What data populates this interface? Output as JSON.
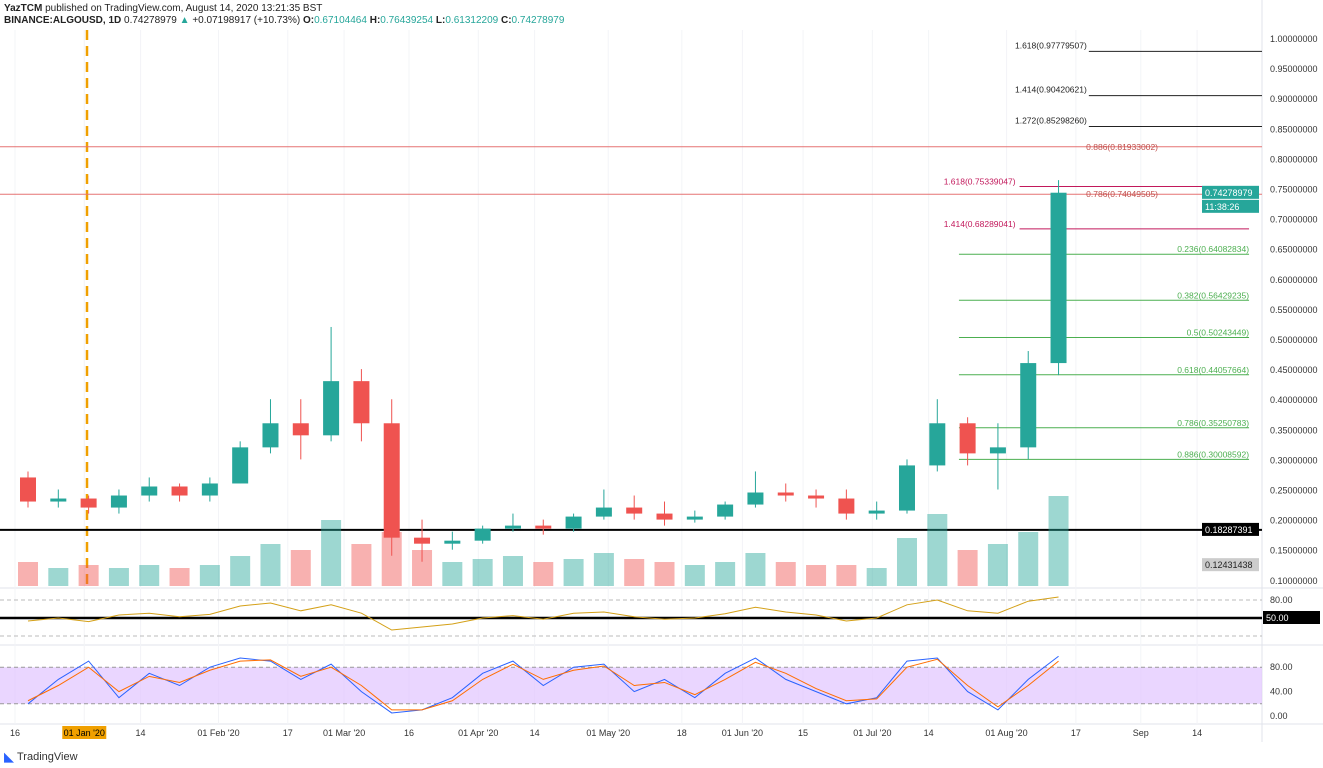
{
  "header": {
    "publisher": "YazTCM",
    "published_text": "published on TradingView.com, August 14, 2020 13:21:35 BST",
    "symbol": "BINANCE:ALGOUSD, 1D",
    "last": "0.74278979",
    "change": "+0.07198917 (+10.73%)",
    "o_label": "O:",
    "o": "0.67104464",
    "h_label": "H:",
    "h": "0.76439254",
    "l_label": "L:",
    "l": "0.61312209",
    "c_label": "C:",
    "c": "0.74278979"
  },
  "footer": {
    "brand": "TradingView"
  },
  "colors": {
    "up": "#26a69a",
    "down": "#ef5350",
    "fib_green": "#4caf50",
    "fib_red": "#b2275d",
    "rsi": "#d4a017",
    "stoch_k": "#2962ff",
    "stoch_d": "#ff6d00",
    "stoch_band": "#e1c4ff"
  },
  "chart_data": {
    "type": "candlestick",
    "price_axis": {
      "ylim": [
        0.1,
        1.0
      ],
      "ticks": [
        "1.00000000",
        "0.95000000",
        "0.90000000",
        "0.85000000",
        "0.80000000",
        "0.75000000",
        "0.70000000",
        "0.65000000",
        "0.60000000",
        "0.55000000",
        "0.50000000",
        "0.45000000",
        "0.40000000",
        "0.35000000",
        "0.30000000",
        "0.25000000",
        "0.20000000",
        "0.15000000",
        "0.10000000"
      ]
    },
    "price_labels": {
      "last": "0.74278979",
      "countdown": "11:38:26",
      "support": "0.18287391",
      "volume_last": "0.12431438"
    },
    "x_ticks": [
      {
        "d": "2019-12-16",
        "t": "16"
      },
      {
        "d": "2020-01-01",
        "t": "01 Jan '20"
      },
      {
        "d": "2020-01-14",
        "t": "14"
      },
      {
        "d": "2020-02-01",
        "t": "01 Feb '20"
      },
      {
        "d": "2020-02-17",
        "t": "17"
      },
      {
        "d": "2020-03-01",
        "t": "01 Mar '20"
      },
      {
        "d": "2020-03-16",
        "t": "16"
      },
      {
        "d": "2020-04-01",
        "t": "01 Apr '20"
      },
      {
        "d": "2020-04-14",
        "t": "14"
      },
      {
        "d": "2020-05-01",
        "t": "01 May '20"
      },
      {
        "d": "2020-05-18",
        "t": "18"
      },
      {
        "d": "2020-06-01",
        "t": "01 Jun '20"
      },
      {
        "d": "2020-06-15",
        "t": "15"
      },
      {
        "d": "2020-07-01",
        "t": "01 Jul '20"
      },
      {
        "d": "2020-07-14",
        "t": "14"
      },
      {
        "d": "2020-08-01",
        "t": "01 Aug '20"
      },
      {
        "d": "2020-08-17",
        "t": "17"
      },
      {
        "d": "2020-09-01",
        "t": "Sep"
      },
      {
        "d": "2020-09-14",
        "t": "14"
      }
    ],
    "candles": [
      [
        "2019-12-16",
        0.27,
        0.28,
        0.22,
        0.23,
        40
      ],
      [
        "2019-12-23",
        0.23,
        0.25,
        0.22,
        0.235,
        30
      ],
      [
        "2019-12-30",
        0.235,
        0.24,
        0.21,
        0.22,
        35
      ],
      [
        "2020-01-06",
        0.22,
        0.25,
        0.21,
        0.24,
        30
      ],
      [
        "2020-01-13",
        0.24,
        0.27,
        0.23,
        0.255,
        35
      ],
      [
        "2020-01-20",
        0.255,
        0.26,
        0.23,
        0.24,
        30
      ],
      [
        "2020-01-27",
        0.24,
        0.27,
        0.23,
        0.26,
        35
      ],
      [
        "2020-02-03",
        0.26,
        0.33,
        0.26,
        0.32,
        50
      ],
      [
        "2020-02-10",
        0.32,
        0.4,
        0.31,
        0.36,
        70
      ],
      [
        "2020-02-17",
        0.36,
        0.4,
        0.3,
        0.34,
        60
      ],
      [
        "2020-02-24",
        0.34,
        0.52,
        0.33,
        0.43,
        110
      ],
      [
        "2020-03-02",
        0.43,
        0.45,
        0.33,
        0.36,
        70
      ],
      [
        "2020-03-09",
        0.36,
        0.4,
        0.14,
        0.17,
        90
      ],
      [
        "2020-03-16",
        0.17,
        0.2,
        0.13,
        0.16,
        60
      ],
      [
        "2020-03-23",
        0.16,
        0.18,
        0.15,
        0.165,
        40
      ],
      [
        "2020-03-30",
        0.165,
        0.19,
        0.16,
        0.185,
        45
      ],
      [
        "2020-04-06",
        0.185,
        0.21,
        0.18,
        0.19,
        50
      ],
      [
        "2020-04-13",
        0.19,
        0.2,
        0.175,
        0.185,
        40
      ],
      [
        "2020-04-20",
        0.185,
        0.21,
        0.18,
        0.205,
        45
      ],
      [
        "2020-04-27",
        0.205,
        0.25,
        0.2,
        0.22,
        55
      ],
      [
        "2020-05-04",
        0.22,
        0.24,
        0.2,
        0.21,
        45
      ],
      [
        "2020-05-11",
        0.21,
        0.23,
        0.19,
        0.2,
        40
      ],
      [
        "2020-05-18",
        0.2,
        0.215,
        0.195,
        0.205,
        35
      ],
      [
        "2020-05-25",
        0.205,
        0.23,
        0.2,
        0.225,
        40
      ],
      [
        "2020-06-01",
        0.225,
        0.28,
        0.22,
        0.245,
        55
      ],
      [
        "2020-06-08",
        0.245,
        0.26,
        0.23,
        0.24,
        40
      ],
      [
        "2020-06-15",
        0.24,
        0.25,
        0.22,
        0.235,
        35
      ],
      [
        "2020-06-22",
        0.235,
        0.25,
        0.2,
        0.21,
        35
      ],
      [
        "2020-06-29",
        0.21,
        0.23,
        0.2,
        0.215,
        30
      ],
      [
        "2020-07-06",
        0.215,
        0.3,
        0.21,
        0.29,
        80
      ],
      [
        "2020-07-13",
        0.29,
        0.4,
        0.28,
        0.36,
        120
      ],
      [
        "2020-07-20",
        0.36,
        0.37,
        0.29,
        0.31,
        60
      ],
      [
        "2020-07-27",
        0.31,
        0.36,
        0.25,
        0.32,
        70
      ],
      [
        "2020-08-03",
        0.32,
        0.48,
        0.3,
        0.46,
        90
      ],
      [
        "2020-08-10",
        0.46,
        0.764,
        0.44,
        0.743,
        150
      ]
    ],
    "horizontal_lines": [
      {
        "value": 0.81933002,
        "label": "0.886(0.81933002)",
        "color": "red",
        "from": "2019-12-12"
      },
      {
        "value": 0.74049505,
        "label": "0.786(0.74049505)",
        "color": "red",
        "from": "2019-12-12"
      },
      {
        "value": 0.18287391,
        "label": "",
        "color": "black",
        "from": "2019-12-12"
      }
    ],
    "fib_levels": [
      {
        "label": "1.618(0.97779507)",
        "value": 0.97779507,
        "color": "black",
        "from": "2020-08-20",
        "to": "2020-09-30"
      },
      {
        "label": "1.414(0.90420621)",
        "value": 0.90420621,
        "color": "black",
        "from": "2020-08-20",
        "to": "2020-09-30"
      },
      {
        "label": "1.272(0.85298260)",
        "value": 0.8529826,
        "color": "black",
        "from": "2020-08-20",
        "to": "2020-09-30"
      },
      {
        "label": "1.618(0.75339047)",
        "value": 0.75339047,
        "color": "red",
        "from": "2020-08-04",
        "to": "2020-09-26"
      },
      {
        "label": "1.414(0.68289041)",
        "value": 0.68289041,
        "color": "red",
        "from": "2020-08-04",
        "to": "2020-09-26"
      },
      {
        "label": "0.236(0.64082834)",
        "value": 0.64082834,
        "color": "green",
        "from": "2020-07-21",
        "to": "2020-09-26"
      },
      {
        "label": "0.382(0.56429235)",
        "value": 0.56429235,
        "color": "green",
        "from": "2020-07-21",
        "to": "2020-09-26"
      },
      {
        "label": "0.5(0.50243449)",
        "value": 0.50243449,
        "color": "green",
        "from": "2020-07-21",
        "to": "2020-09-26"
      },
      {
        "label": "0.618(0.44057664)",
        "value": 0.44057664,
        "color": "green",
        "from": "2020-07-21",
        "to": "2020-09-26"
      },
      {
        "label": "0.786(0.35250783)",
        "value": 0.35250783,
        "color": "green",
        "from": "2020-07-21",
        "to": "2020-09-26"
      },
      {
        "label": "0.886(0.30008592)",
        "value": 0.30008592,
        "color": "green",
        "from": "2020-07-21",
        "to": "2020-09-26"
      }
    ],
    "rsi": {
      "ticks": [
        "80.00",
        "50.00"
      ],
      "level_label": "50.00",
      "values": [
        45,
        50,
        44,
        55,
        58,
        52,
        56,
        70,
        75,
        62,
        72,
        58,
        30,
        35,
        40,
        50,
        54,
        48,
        58,
        60,
        52,
        48,
        50,
        57,
        68,
        60,
        55,
        45,
        50,
        72,
        80,
        62,
        58,
        78,
        85
      ]
    },
    "stoch": {
      "ticks": [
        "80.00",
        "40.00",
        "0.00"
      ],
      "k": [
        20,
        60,
        90,
        30,
        70,
        50,
        80,
        95,
        90,
        60,
        85,
        40,
        5,
        10,
        30,
        70,
        90,
        50,
        80,
        85,
        40,
        60,
        30,
        70,
        95,
        60,
        40,
        20,
        30,
        90,
        95,
        40,
        10,
        60,
        98
      ],
      "d": [
        25,
        50,
        80,
        40,
        65,
        55,
        75,
        90,
        92,
        65,
        80,
        50,
        10,
        10,
        25,
        60,
        85,
        60,
        75,
        82,
        50,
        55,
        35,
        60,
        88,
        70,
        45,
        25,
        28,
        80,
        93,
        50,
        15,
        50,
        90
      ]
    }
  }
}
